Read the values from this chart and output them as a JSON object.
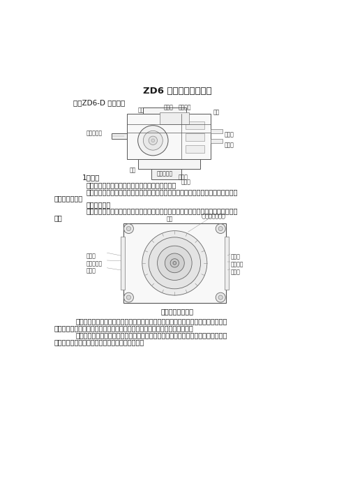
{
  "title": "ZD6 型直流电动转辙机",
  "section": "一、ZD6-D 型转辙机",
  "subsection": "1、结构",
  "para1": "电动机：为转辙机提供动力，采用直流串激电动机",
  "para2a": "减速器：降低转速以换取足够的转矩，并完成传动。由第一级齿轮、第二级行星传动",
  "para2b": "式减速器组成。",
  "para3": "摩擦联结器：",
  "para4a": "用弹簧和摩擦制动板，组成输出轴与主轴之间的摩擦连接，以防止尖轨受阻时损坏机",
  "para4b": "件。",
  "caption2": "摩擦联结器的结构",
  "para5a": "主轴：由输出轴通过起动片带动旋转，主轴上安装锁闭齿轮、由锁闭齿轮和齿条块相",
  "para5b": "互动作，将转动运动变为平动，通过动作杆带动尖轨运动，并完成锁闭作用。",
  "para6a": "动作杆：与齿条块之间用挤切销相连，正常动作时，齿条块带动动作杆。挤岔时，挤",
  "para6b": "切销折断，动作杆与齿条块分离，避免机件损坏。",
  "bg_color": "#ffffff",
  "text_color": "#1a1a1a",
  "label_color": "#333333"
}
